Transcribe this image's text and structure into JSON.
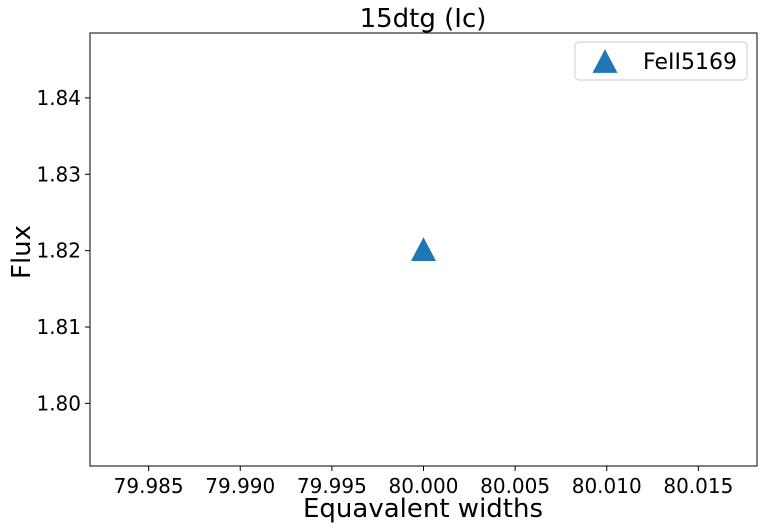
{
  "chart_data": {
    "type": "scatter",
    "title": "15dtg (Ic)",
    "xlabel": "Equavalent widths",
    "ylabel": "Flux",
    "xlim": [
      79.9818,
      80.0182
    ],
    "ylim": [
      1.7918,
      1.8485
    ],
    "xticks": [
      79.985,
      79.99,
      79.995,
      80.0,
      80.005,
      80.01,
      80.015
    ],
    "xtick_labels": [
      "79.985",
      "79.990",
      "79.995",
      "80.000",
      "80.005",
      "80.010",
      "80.015"
    ],
    "yticks": [
      1.8,
      1.81,
      1.82,
      1.83,
      1.84
    ],
    "ytick_labels": [
      "1.80",
      "1.81",
      "1.82",
      "1.83",
      "1.84"
    ],
    "grid": false,
    "legend_position": "top-right",
    "series": [
      {
        "name": "FeII5169",
        "marker": "triangle-up",
        "color": "#1f77b4",
        "points": [
          {
            "x": 80.0,
            "y": 1.8202
          }
        ]
      }
    ]
  }
}
